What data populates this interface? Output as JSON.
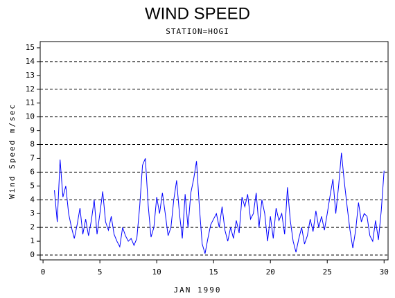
{
  "chart_data": {
    "type": "line",
    "title": "WIND SPEED",
    "subtitle": "STATION=HOGI",
    "x_label": "JAN 1990",
    "y_label": "Wind Speed m/sec",
    "xlim": [
      -0.25,
      30.35
    ],
    "xticks": [
      0,
      5,
      10,
      15,
      20,
      25,
      30
    ],
    "ylim": [
      -0.35,
      15.45
    ],
    "yticks": [
      0,
      1,
      2,
      3,
      4,
      5,
      6,
      7,
      8,
      9,
      10,
      11,
      12,
      13,
      14,
      15
    ],
    "grid": true,
    "grid_step": 2,
    "series": [
      {
        "name": "Wind Speed",
        "color": "#0000ff",
        "x": [
          1,
          1.25,
          1.5,
          1.75,
          2,
          2.25,
          2.5,
          2.75,
          3,
          3.25,
          3.5,
          3.75,
          4,
          4.25,
          4.5,
          4.75,
          5,
          5.25,
          5.5,
          5.75,
          6,
          6.25,
          6.5,
          6.75,
          7,
          7.25,
          7.5,
          7.75,
          8,
          8.25,
          8.5,
          8.75,
          9,
          9.25,
          9.5,
          9.75,
          10,
          10.25,
          10.5,
          10.75,
          11,
          11.25,
          11.5,
          11.75,
          12,
          12.25,
          12.5,
          12.75,
          13,
          13.25,
          13.5,
          13.75,
          14,
          14.25,
          14.5,
          14.75,
          15,
          15.25,
          15.5,
          15.75,
          16,
          16.25,
          16.5,
          16.75,
          17,
          17.25,
          17.5,
          17.75,
          18,
          18.25,
          18.5,
          18.75,
          19,
          19.25,
          19.5,
          19.75,
          20,
          20.25,
          20.5,
          20.75,
          21,
          21.25,
          21.5,
          21.75,
          22,
          22.25,
          22.5,
          22.75,
          23,
          23.25,
          23.5,
          23.75,
          24,
          24.25,
          24.5,
          24.75,
          25,
          25.25,
          25.5,
          25.75,
          26,
          26.25,
          26.5,
          26.75,
          27,
          27.25,
          27.5,
          27.75,
          28,
          28.25,
          28.5,
          28.75,
          29,
          29.25,
          29.5,
          29.75,
          30
        ],
        "values": [
          4.7,
          2.4,
          6.9,
          4.2,
          5.0,
          3.0,
          2.0,
          1.2,
          2.2,
          3.4,
          1.5,
          2.6,
          1.4,
          2.5,
          4.0,
          1.5,
          3.0,
          4.6,
          2.4,
          1.8,
          2.8,
          1.5,
          1.0,
          0.6,
          2.0,
          1.4,
          1.0,
          1.2,
          0.7,
          1.2,
          3.5,
          6.5,
          7.0,
          3.6,
          1.3,
          2.0,
          4.2,
          3.0,
          4.5,
          3.0,
          1.4,
          2.0,
          4.0,
          5.4,
          3.0,
          1.2,
          4.4,
          2.0,
          4.5,
          5.5,
          6.8,
          3.5,
          0.8,
          0.1,
          1.2,
          2.2,
          2.6,
          3.0,
          2.0,
          3.5,
          1.8,
          1.0,
          2.0,
          1.2,
          2.5,
          1.6,
          4.2,
          3.5,
          4.4,
          2.6,
          3.0,
          4.5,
          2.0,
          4.0,
          3.0,
          1.0,
          2.8,
          1.2,
          3.4,
          2.5,
          3.0,
          1.5,
          4.9,
          2.5,
          1.0,
          0.2,
          1.2,
          2.0,
          0.8,
          1.4,
          2.6,
          1.7,
          3.2,
          2.0,
          2.8,
          1.8,
          3.0,
          4.3,
          5.5,
          3.0,
          5.0,
          7.4,
          5.3,
          3.5,
          1.8,
          0.5,
          1.8,
          3.8,
          2.4,
          3.0,
          2.8,
          1.4,
          1.0,
          2.5,
          1.1,
          3.2,
          6.1
        ]
      }
    ]
  }
}
